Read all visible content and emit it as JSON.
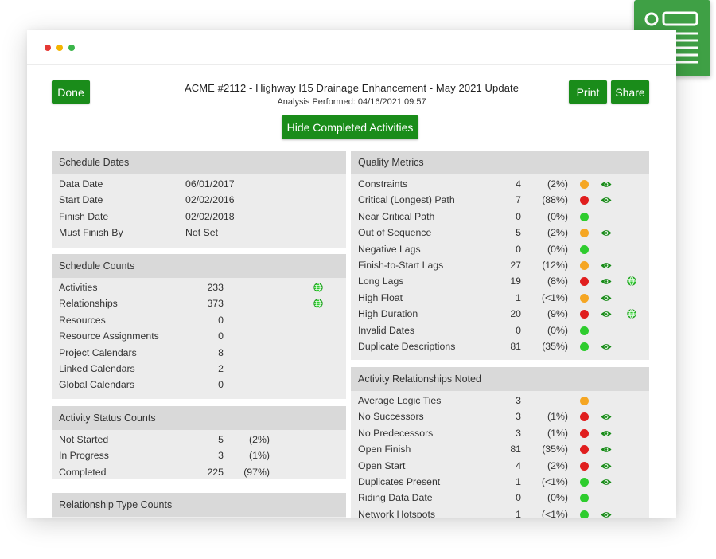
{
  "colors": {
    "accent_green": "#1a8c1a",
    "status_green": "#2ecc2e",
    "status_orange": "#f5a623",
    "status_red": "#e01e1e",
    "panel_bg": "#ececec",
    "panel_header_bg": "#d9d9d9"
  },
  "logo": {
    "icon": "report-layout-icon"
  },
  "window": {
    "controls": [
      "close",
      "minimize",
      "maximize"
    ]
  },
  "header": {
    "done_label": "Done",
    "title": "ACME #2112 - Highway I15 Drainage Enhancement - May 2021 Update",
    "subtitle": "Analysis Performed: 04/16/2021 09:57",
    "print_label": "Print",
    "share_label": "Share",
    "toggle_label": "Hide Completed Activities"
  },
  "schedule_dates": {
    "title": "Schedule Dates",
    "rows": [
      {
        "label": "Data Date",
        "value": "06/01/2017"
      },
      {
        "label": "Start Date",
        "value": "02/02/2016"
      },
      {
        "label": "Finish Date",
        "value": "02/02/2018"
      },
      {
        "label": "Must Finish By",
        "value": "Not Set"
      }
    ]
  },
  "schedule_counts": {
    "title": "Schedule Counts",
    "rows": [
      {
        "label": "Activities",
        "value": "233",
        "globe": true
      },
      {
        "label": "Relationships",
        "value": "373",
        "globe": true
      },
      {
        "label": "Resources",
        "value": "0",
        "globe": false
      },
      {
        "label": "Resource Assignments",
        "value": "0",
        "globe": false
      },
      {
        "label": "Project Calendars",
        "value": "8",
        "globe": false
      },
      {
        "label": "Linked Calendars",
        "value": "2",
        "globe": false
      },
      {
        "label": "Global Calendars",
        "value": "0",
        "globe": false
      }
    ]
  },
  "activity_status_counts": {
    "title": "Activity Status Counts",
    "rows": [
      {
        "label": "Not Started",
        "value": "5",
        "pct": "(2%)"
      },
      {
        "label": "In Progress",
        "value": "3",
        "pct": "(1%)"
      },
      {
        "label": "Completed",
        "value": "225",
        "pct": "(97%)"
      }
    ]
  },
  "relationship_type_counts": {
    "title": "Relationship Type Counts"
  },
  "quality_metrics": {
    "title": "Quality Metrics",
    "rows": [
      {
        "label": "Constraints",
        "value": "4",
        "pct": "(2%)",
        "status": "orange",
        "eye": true,
        "globe": false
      },
      {
        "label": "Critical (Longest) Path",
        "value": "7",
        "pct": "(88%)",
        "status": "red",
        "eye": true,
        "globe": false
      },
      {
        "label": "Near Critical Path",
        "value": "0",
        "pct": "(0%)",
        "status": "green",
        "eye": false,
        "globe": false
      },
      {
        "label": "Out of Sequence",
        "value": "5",
        "pct": "(2%)",
        "status": "orange",
        "eye": true,
        "globe": false
      },
      {
        "label": "Negative Lags",
        "value": "0",
        "pct": "(0%)",
        "status": "green",
        "eye": false,
        "globe": false
      },
      {
        "label": "Finish-to-Start Lags",
        "value": "27",
        "pct": "(12%)",
        "status": "orange",
        "eye": true,
        "globe": false
      },
      {
        "label": "Long Lags",
        "value": "19",
        "pct": "(8%)",
        "status": "red",
        "eye": true,
        "globe": true
      },
      {
        "label": "High Float",
        "value": "1",
        "pct": "(<1%)",
        "status": "orange",
        "eye": true,
        "globe": false
      },
      {
        "label": "High Duration",
        "value": "20",
        "pct": "(9%)",
        "status": "red",
        "eye": true,
        "globe": true
      },
      {
        "label": "Invalid Dates",
        "value": "0",
        "pct": "(0%)",
        "status": "green",
        "eye": false,
        "globe": false
      },
      {
        "label": "Duplicate Descriptions",
        "value": "81",
        "pct": "(35%)",
        "status": "green",
        "eye": true,
        "globe": false
      }
    ]
  },
  "activity_relationships": {
    "title": "Activity Relationships Noted",
    "rows": [
      {
        "label": "Average Logic Ties",
        "value": "3",
        "pct": "",
        "status": "orange",
        "eye": false
      },
      {
        "label": "No Successors",
        "value": "3",
        "pct": "(1%)",
        "status": "red",
        "eye": true
      },
      {
        "label": "No Predecessors",
        "value": "3",
        "pct": "(1%)",
        "status": "red",
        "eye": true
      },
      {
        "label": "Open Finish",
        "value": "81",
        "pct": "(35%)",
        "status": "red",
        "eye": true
      },
      {
        "label": "Open Start",
        "value": "4",
        "pct": "(2%)",
        "status": "red",
        "eye": true
      },
      {
        "label": "Duplicates Present",
        "value": "1",
        "pct": "(<1%)",
        "status": "green",
        "eye": true
      },
      {
        "label": "Riding Data Date",
        "value": "0",
        "pct": "(0%)",
        "status": "green",
        "eye": false
      },
      {
        "label": "Network Hotspots",
        "value": "1",
        "pct": "(<1%)",
        "status": "green",
        "eye": true
      }
    ]
  }
}
